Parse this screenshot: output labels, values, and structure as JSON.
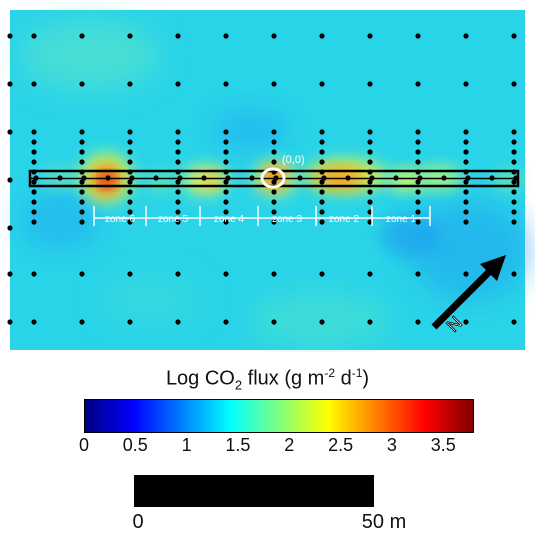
{
  "map": {
    "origin_label": "(0,0)",
    "north_label": "N",
    "zones": [
      "zone 6",
      "zone 5",
      "zone 4",
      "zone 3",
      "zone 2",
      "zone 1"
    ],
    "colors": {
      "background": "#2ad4e8",
      "traverse": "#000000",
      "zone_lines": "#ffffff",
      "dots": "#000000",
      "origin_marker": "#ffffff"
    }
  },
  "legend": {
    "title_prefix": "Log CO",
    "title_sub": "2",
    "title_mid": " flux (g m",
    "title_exp1": "-2",
    "title_d": " d",
    "title_exp2": "-1",
    "title_suffix": ")",
    "ticks": [
      "0",
      "0.5",
      "1",
      "1.5",
      "2",
      "2.5",
      "3",
      "3.5"
    ],
    "range": [
      0,
      3.8
    ],
    "colors": [
      "#00007f",
      "#0000ff",
      "#007fff",
      "#00ffff",
      "#7fff7f",
      "#ffff00",
      "#ff7f00",
      "#ff0000",
      "#7f0000"
    ]
  },
  "scale_bar": {
    "start_label": "0",
    "end_label": "50 m"
  }
}
